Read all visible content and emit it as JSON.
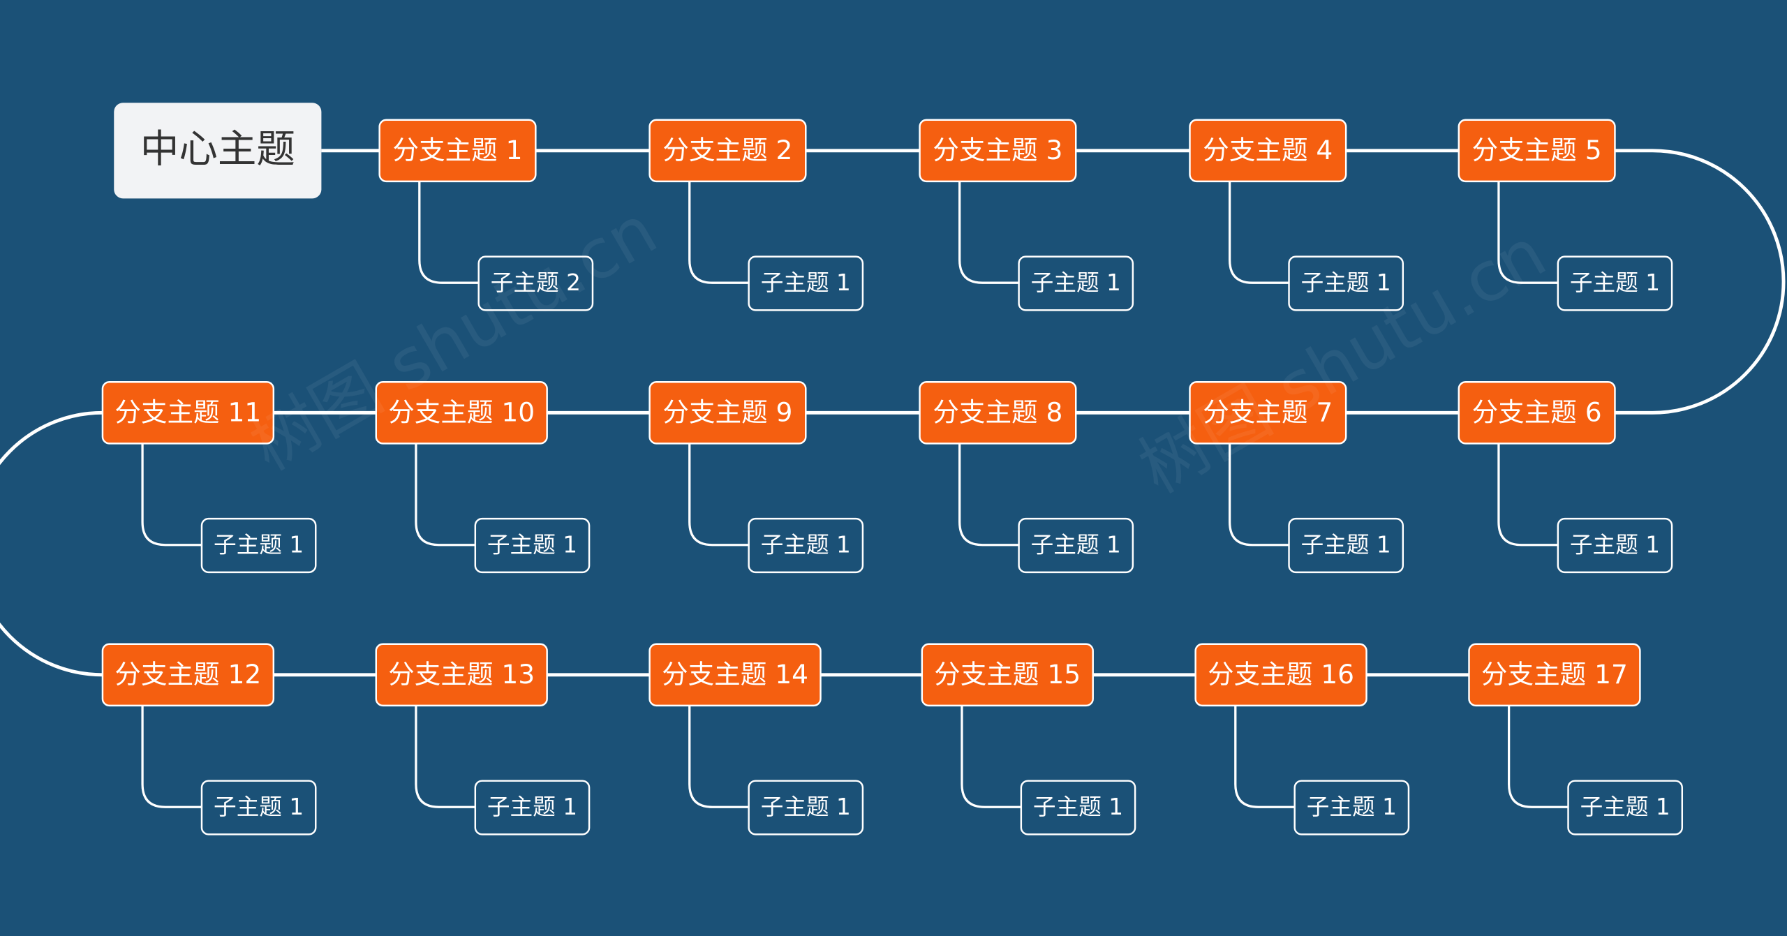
{
  "center": {
    "label": "中心主题"
  },
  "branches": [
    {
      "label": "分支主题 1",
      "child": "子主题 2"
    },
    {
      "label": "分支主题 2",
      "child": "子主题 1"
    },
    {
      "label": "分支主题 3",
      "child": "子主题 1"
    },
    {
      "label": "分支主题 4",
      "child": "子主题 1"
    },
    {
      "label": "分支主题 5",
      "child": "子主题 1"
    },
    {
      "label": "分支主题 6",
      "child": "子主题 1"
    },
    {
      "label": "分支主题 7",
      "child": "子主题 1"
    },
    {
      "label": "分支主题 8",
      "child": "子主题 1"
    },
    {
      "label": "分支主题 9",
      "child": "子主题 1"
    },
    {
      "label": "分支主题 10",
      "child": "子主题 1"
    },
    {
      "label": "分支主题 11",
      "child": "子主题 1"
    },
    {
      "label": "分支主题 12",
      "child": "子主题 1"
    },
    {
      "label": "分支主题 13",
      "child": "子主题 1"
    },
    {
      "label": "分支主题 14",
      "child": "子主题 1"
    },
    {
      "label": "分支主题 15",
      "child": "子主题 1"
    },
    {
      "label": "分支主题 16",
      "child": "子主题 1"
    },
    {
      "label": "分支主题 17",
      "child": "子主题 1"
    }
  ],
  "watermark": "树图 shutu.cn"
}
